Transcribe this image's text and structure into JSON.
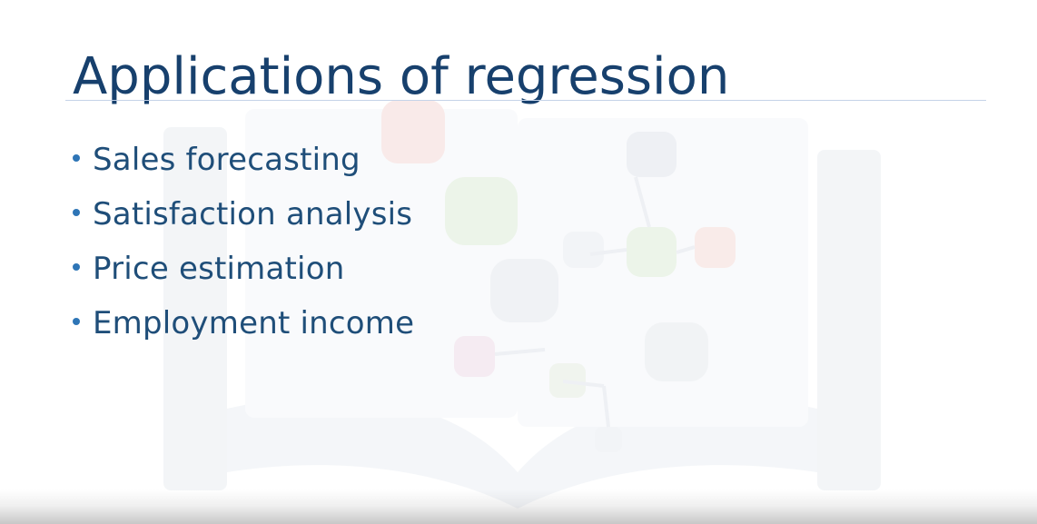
{
  "slide": {
    "title": "Applications of regression",
    "bullets": [
      "Sales forecasting",
      "Satisfaction analysis",
      "Price estimation",
      "Employment income"
    ]
  },
  "colors": {
    "title": "#17406d",
    "bullet_text": "#1f4e79",
    "bullet_dot": "#2e75b6",
    "title_rule": "#c5d3e8",
    "background": "#ffffff"
  },
  "icons": {
    "background_watermark": "book-network-watermark"
  }
}
